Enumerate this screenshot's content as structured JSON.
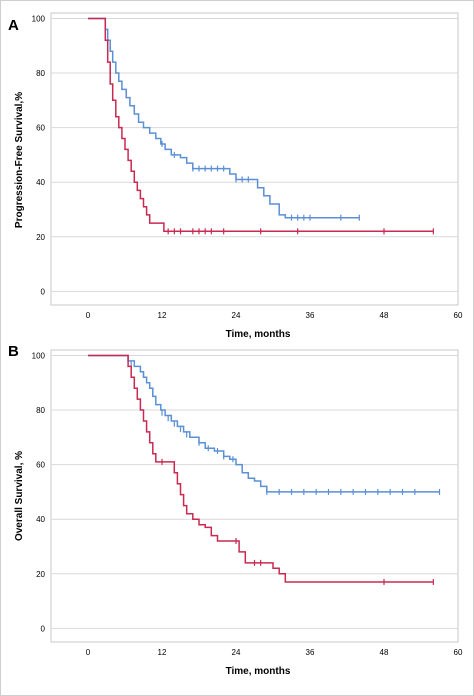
{
  "chart_data": [
    {
      "type": "line",
      "panel_label": "A",
      "xlabel": "Time, months",
      "ylabel": "Progression-Free Survival,%",
      "xlim": [
        -6,
        60
      ],
      "ylim": [
        -5,
        102
      ],
      "xticks": [
        0,
        12,
        24,
        36,
        48,
        60
      ],
      "yticks": [
        0,
        20,
        40,
        60,
        80,
        100
      ],
      "grid": "horizontal",
      "series": [
        {
          "color": "#5b8fd6",
          "step": [
            [
              0,
              100
            ],
            [
              2.5,
              100
            ],
            [
              2.8,
              96
            ],
            [
              3.2,
              92
            ],
            [
              3.6,
              88
            ],
            [
              4,
              84
            ],
            [
              4.5,
              80
            ],
            [
              5,
              77
            ],
            [
              5.5,
              74
            ],
            [
              6.2,
              71
            ],
            [
              6.8,
              68
            ],
            [
              7.5,
              65
            ],
            [
              8.2,
              62
            ],
            [
              9,
              60
            ],
            [
              10,
              58
            ],
            [
              11,
              56
            ],
            [
              11.8,
              54
            ],
            [
              12.5,
              52
            ],
            [
              13.5,
              50
            ],
            [
              15,
              49
            ],
            [
              16,
              47
            ],
            [
              17,
              45
            ],
            [
              22,
              45
            ],
            [
              23,
              43
            ],
            [
              24,
              41
            ],
            [
              26.5,
              41
            ],
            [
              27.5,
              38
            ],
            [
              28.5,
              35
            ],
            [
              29.5,
              32
            ],
            [
              31,
              28
            ],
            [
              32,
              27
            ],
            [
              44,
              27
            ]
          ],
          "censors": [
            [
              12,
              54
            ],
            [
              14,
              50
            ],
            [
              17,
              45
            ],
            [
              18,
              45
            ],
            [
              19,
              45
            ],
            [
              20,
              45
            ],
            [
              21,
              45
            ],
            [
              22,
              45
            ],
            [
              24,
              41
            ],
            [
              25,
              41
            ],
            [
              26,
              41
            ],
            [
              33,
              27
            ],
            [
              34,
              27
            ],
            [
              35,
              27
            ],
            [
              36,
              27
            ],
            [
              41,
              27
            ],
            [
              44,
              27
            ]
          ]
        },
        {
          "color": "#c82a50",
          "step": [
            [
              0,
              100
            ],
            [
              2.5,
              100
            ],
            [
              2.8,
              92
            ],
            [
              3.2,
              84
            ],
            [
              3.6,
              76
            ],
            [
              4,
              70
            ],
            [
              4.5,
              64
            ],
            [
              5,
              60
            ],
            [
              5.5,
              56
            ],
            [
              6,
              52
            ],
            [
              6.5,
              48
            ],
            [
              7,
              44
            ],
            [
              7.5,
              40
            ],
            [
              8,
              37
            ],
            [
              8.5,
              34
            ],
            [
              9,
              31
            ],
            [
              9.5,
              28
            ],
            [
              10,
              25
            ],
            [
              12,
              25
            ],
            [
              12.3,
              22
            ],
            [
              56,
              22
            ]
          ],
          "censors": [
            [
              13,
              22
            ],
            [
              14,
              22
            ],
            [
              15,
              22
            ],
            [
              17,
              22
            ],
            [
              18,
              22
            ],
            [
              19,
              22
            ],
            [
              20,
              22
            ],
            [
              22,
              22
            ],
            [
              28,
              22
            ],
            [
              34,
              22
            ],
            [
              48,
              22
            ],
            [
              56,
              22
            ]
          ]
        }
      ]
    },
    {
      "type": "line",
      "panel_label": "B",
      "xlabel": "Time, months",
      "ylabel": "Overall Survival, %",
      "xlim": [
        -6,
        60
      ],
      "ylim": [
        -5,
        102
      ],
      "xticks": [
        0,
        12,
        24,
        36,
        48,
        60
      ],
      "yticks": [
        0,
        20,
        40,
        60,
        80,
        100
      ],
      "grid": "horizontal",
      "series": [
        {
          "color": "#5b8fd6",
          "step": [
            [
              0,
              100
            ],
            [
              6,
              100
            ],
            [
              6.5,
              98
            ],
            [
              7.5,
              96
            ],
            [
              8.5,
              94
            ],
            [
              9,
              92
            ],
            [
              9.5,
              90
            ],
            [
              10,
              88
            ],
            [
              10.5,
              85
            ],
            [
              11,
              82
            ],
            [
              11.8,
              80
            ],
            [
              12.5,
              78
            ],
            [
              13.5,
              76
            ],
            [
              14.5,
              74
            ],
            [
              15.5,
              72
            ],
            [
              16.5,
              70
            ],
            [
              18,
              68
            ],
            [
              19,
              66
            ],
            [
              20.5,
              65
            ],
            [
              22,
              63
            ],
            [
              23,
              62
            ],
            [
              24,
              60
            ],
            [
              25,
              57
            ],
            [
              26,
              55
            ],
            [
              27,
              54
            ],
            [
              28,
              52
            ],
            [
              29,
              50
            ],
            [
              57,
              50
            ]
          ],
          "censors": [
            [
              7,
              97
            ],
            [
              9,
              93
            ],
            [
              10.5,
              86
            ],
            [
              12,
              79
            ],
            [
              13,
              77
            ],
            [
              14,
              75
            ],
            [
              15,
              73
            ],
            [
              16,
              71
            ],
            [
              18,
              68
            ],
            [
              19.5,
              66
            ],
            [
              21,
              65
            ],
            [
              22,
              63
            ],
            [
              23.5,
              62
            ],
            [
              29,
              50
            ],
            [
              31,
              50
            ],
            [
              33,
              50
            ],
            [
              35,
              50
            ],
            [
              37,
              50
            ],
            [
              39,
              50
            ],
            [
              41,
              50
            ],
            [
              43,
              50
            ],
            [
              45,
              50
            ],
            [
              47,
              50
            ],
            [
              49,
              50
            ],
            [
              51,
              50
            ],
            [
              53,
              50
            ],
            [
              57,
              50
            ]
          ]
        },
        {
          "color": "#c82a50",
          "step": [
            [
              0,
              100
            ],
            [
              6,
              100
            ],
            [
              6.5,
              96
            ],
            [
              7,
              92
            ],
            [
              7.5,
              88
            ],
            [
              8,
              84
            ],
            [
              8.5,
              80
            ],
            [
              9,
              76
            ],
            [
              9.5,
              72
            ],
            [
              10,
              68
            ],
            [
              10.5,
              64
            ],
            [
              11,
              61
            ],
            [
              13.5,
              61
            ],
            [
              14,
              57
            ],
            [
              14.5,
              53
            ],
            [
              15,
              49
            ],
            [
              15.5,
              45
            ],
            [
              16,
              42
            ],
            [
              17,
              40
            ],
            [
              18,
              38
            ],
            [
              19,
              37
            ],
            [
              20,
              34
            ],
            [
              21,
              32
            ],
            [
              24,
              32
            ],
            [
              24.5,
              28
            ],
            [
              25.5,
              24
            ],
            [
              29,
              24
            ],
            [
              30,
              22
            ],
            [
              31,
              20
            ],
            [
              32,
              17
            ],
            [
              56,
              17
            ]
          ],
          "censors": [
            [
              12,
              61
            ],
            [
              14,
              58
            ],
            [
              20,
              35
            ],
            [
              24,
              32
            ],
            [
              27,
              24
            ],
            [
              28,
              24
            ],
            [
              48,
              17
            ],
            [
              56,
              17
            ]
          ]
        }
      ]
    }
  ]
}
